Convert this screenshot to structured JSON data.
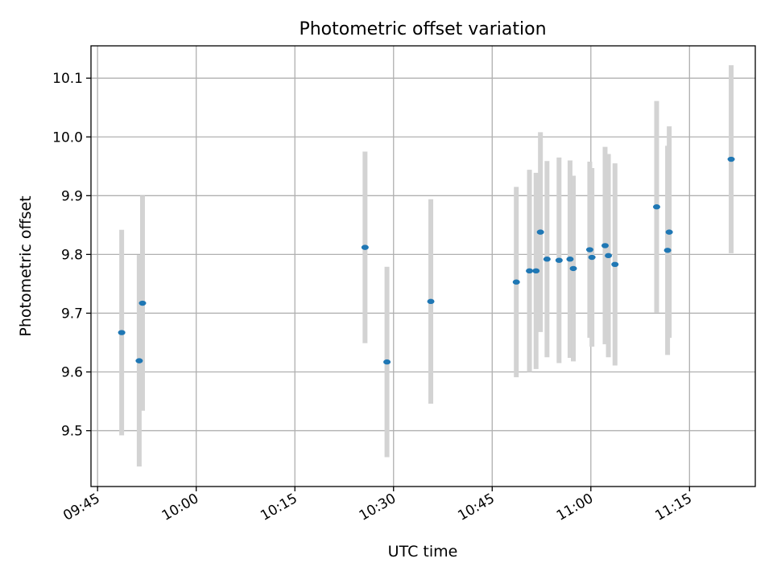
{
  "chart_data": {
    "type": "scatter",
    "title": "Photometric offset variation",
    "xlabel": "UTC time",
    "ylabel": "Photometric offset",
    "x_axis": "time",
    "xlim": [
      "09:44",
      "11:25"
    ],
    "ylim": [
      9.405,
      10.155
    ],
    "x_ticks": [
      "09:45",
      "10:00",
      "10:15",
      "10:30",
      "10:45",
      "11:00",
      "11:15"
    ],
    "y_ticks": [
      9.5,
      9.6,
      9.7,
      9.8,
      9.9,
      10.0,
      10.1
    ],
    "grid": true,
    "legend": "none",
    "colors": {
      "points": "#1f77b4",
      "error_bars": "#d3d3d3",
      "grid": "#b0b0b0"
    },
    "series": [
      {
        "points": [
          {
            "time": "09:48:40",
            "y": 9.667,
            "err": 0.175
          },
          {
            "time": "09:51:20",
            "y": 9.619,
            "err": 0.18
          },
          {
            "time": "09:51:50",
            "y": 9.717,
            "err": 0.183
          },
          {
            "time": "10:25:40",
            "y": 9.812,
            "err": 0.163
          },
          {
            "time": "10:29:00",
            "y": 9.617,
            "err": 0.162
          },
          {
            "time": "10:35:40",
            "y": 9.72,
            "err": 0.174
          },
          {
            "time": "10:48:40",
            "y": 9.753,
            "err": 0.162
          },
          {
            "time": "10:50:40",
            "y": 9.772,
            "err": 0.172
          },
          {
            "time": "10:51:40",
            "y": 9.772,
            "err": 0.167
          },
          {
            "time": "10:52:20",
            "y": 9.838,
            "err": 0.17
          },
          {
            "time": "10:53:20",
            "y": 9.792,
            "err": 0.167
          },
          {
            "time": "10:55:10",
            "y": 9.79,
            "err": 0.175
          },
          {
            "time": "10:56:50",
            "y": 9.792,
            "err": 0.168
          },
          {
            "time": "10:57:20",
            "y": 9.776,
            "err": 0.158
          },
          {
            "time": "10:59:50",
            "y": 9.808,
            "err": 0.15
          },
          {
            "time": "11:00:10",
            "y": 9.795,
            "err": 0.152
          },
          {
            "time": "11:02:10",
            "y": 9.815,
            "err": 0.168
          },
          {
            "time": "11:02:40",
            "y": 9.798,
            "err": 0.173
          },
          {
            "time": "11:03:40",
            "y": 9.783,
            "err": 0.172
          },
          {
            "time": "11:10:00",
            "y": 9.881,
            "err": 0.18
          },
          {
            "time": "11:11:40",
            "y": 9.807,
            "err": 0.178
          },
          {
            "time": "11:11:55",
            "y": 9.838,
            "err": 0.18
          },
          {
            "time": "11:21:20",
            "y": 9.962,
            "err": 0.16
          }
        ]
      }
    ]
  }
}
